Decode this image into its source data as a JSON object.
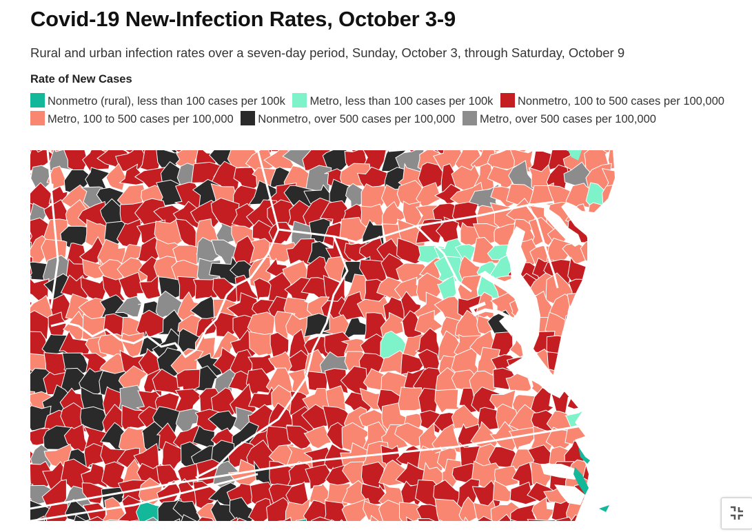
{
  "header": {
    "title": "Covid-19 New-Infection Rates, October 3-9",
    "subtitle": "Rural and urban infection rates over a seven-day period, Sunday, October 3, through Saturday, October 9"
  },
  "legend": {
    "title": "Rate of New Cases",
    "items": [
      {
        "label": "Nonmetro (rural), less than 100 cases per 100k",
        "color": "#13b89a"
      },
      {
        "label": "Metro, less than 100 cases per 100k",
        "color": "#7ef2c8"
      },
      {
        "label": "Nonmetro, 100 to 500 cases per 100,000",
        "color": "#c41e22"
      },
      {
        "label": "Metro, 100 to 500 cases per 100,000",
        "color": "#f88670"
      },
      {
        "label": "Nonmetro, over 500 cases per 100,000",
        "color": "#2a2a2a"
      },
      {
        "label": "Metro, over 500 cases per 100,000",
        "color": "#8c8c8c"
      }
    ]
  },
  "map": {
    "water_color": "#ffffff",
    "state_border_color": "#ffffff",
    "county_border_color": "#ffffff"
  },
  "controls": {
    "fullscreen_icon": "fullscreen-exit-icon"
  }
}
